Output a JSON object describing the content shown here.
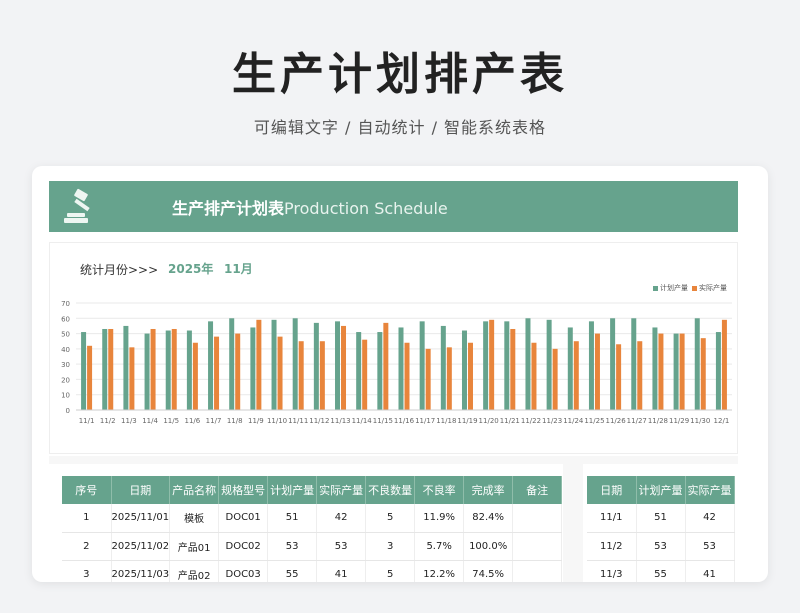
{
  "hero": {
    "title": "生产计划排产表",
    "subtitle": "可编辑文字 / 自动统计 / 智能系统表格"
  },
  "banner": {
    "logo_icon": "gavel-icon",
    "title_cn": "生产排产计划表",
    "title_en": "Production Schedule"
  },
  "stats": {
    "label": "统计月份>>>",
    "year": "2025年",
    "month": "11月"
  },
  "colors": {
    "accent": "#66a38d",
    "planned": "#66a38d",
    "actual": "#e8853c"
  },
  "chart_data": {
    "type": "bar",
    "categories": [
      "11/1",
      "11/2",
      "11/3",
      "11/4",
      "11/5",
      "11/6",
      "11/7",
      "11/8",
      "11/9",
      "11/10",
      "11/11",
      "11/12",
      "11/13",
      "11/14",
      "11/15",
      "11/16",
      "11/17",
      "11/18",
      "11/19",
      "11/20",
      "11/21",
      "11/22",
      "11/23",
      "11/24",
      "11/25",
      "11/26",
      "11/27",
      "11/28",
      "11/29",
      "11/30",
      "12/1"
    ],
    "series": [
      {
        "name": "计划产量",
        "values": [
          51,
          53,
          55,
          50,
          52,
          52,
          58,
          60,
          54,
          59,
          60,
          57,
          58,
          51,
          51,
          54,
          58,
          55,
          52,
          58,
          58,
          60,
          59,
          54,
          58,
          60,
          60,
          54,
          50,
          60,
          51
        ]
      },
      {
        "name": "实际产量",
        "values": [
          42,
          53,
          41,
          53,
          53,
          44,
          48,
          50,
          59,
          48,
          45,
          45,
          55,
          46,
          57,
          44,
          40,
          41,
          44,
          59,
          53,
          44,
          40,
          45,
          50,
          43,
          45,
          50,
          50,
          47,
          59
        ]
      }
    ],
    "yticks": [
      0,
      10,
      20,
      30,
      40,
      50,
      60,
      70
    ],
    "ylim": [
      0,
      70
    ],
    "legend": "top-right",
    "grid": true
  },
  "main_table": {
    "headers": [
      "序号",
      "日期",
      "产品名称",
      "规格型号",
      "计划产量",
      "实际产量",
      "不良数量",
      "不良率",
      "完成率",
      "备注"
    ],
    "rows": [
      [
        "1",
        "2025/11/01",
        "模板",
        "DOC01",
        "51",
        "42",
        "5",
        "11.9%",
        "82.4%",
        ""
      ],
      [
        "2",
        "2025/11/02",
        "产品01",
        "DOC02",
        "53",
        "53",
        "3",
        "5.7%",
        "100.0%",
        ""
      ],
      [
        "3",
        "2025/11/03",
        "产品02",
        "DOC03",
        "55",
        "41",
        "5",
        "12.2%",
        "74.5%",
        ""
      ]
    ]
  },
  "side_table": {
    "headers": [
      "日期",
      "计划产量",
      "实际产量"
    ],
    "rows": [
      [
        "11/1",
        "51",
        "42"
      ],
      [
        "11/2",
        "53",
        "53"
      ],
      [
        "11/3",
        "55",
        "41"
      ]
    ]
  }
}
